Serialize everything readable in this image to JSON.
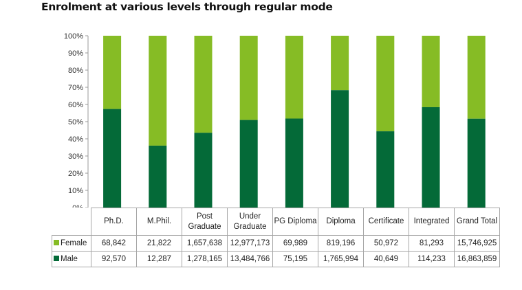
{
  "chart_data": {
    "type": "bar",
    "stacked": "percent",
    "title": "Enrolment at various levels through regular mode",
    "categories": [
      "Ph.D.",
      "M.Phil.",
      "Post Graduate",
      "Under Graduate",
      "PG Diploma",
      "Diploma",
      "Certificate",
      "Integrated",
      "Grand Total"
    ],
    "category_lines": [
      [
        "Ph.D."
      ],
      [
        "M.Phil."
      ],
      [
        "Post",
        "Graduate"
      ],
      [
        "Under",
        "Graduate"
      ],
      [
        "PG Diploma"
      ],
      [
        "Diploma"
      ],
      [
        "Certificate"
      ],
      [
        "Integrated"
      ],
      [
        "Grand Total"
      ]
    ],
    "series": [
      {
        "name": "Female",
        "color": "#86bc25",
        "values": [
          68842,
          21822,
          1657638,
          12977173,
          69989,
          819196,
          50972,
          81293,
          15746925
        ],
        "labels": [
          "68,842",
          "21,822",
          "1,657,638",
          "12,977,173",
          "69,989",
          "819,196",
          "50,972",
          "81,293",
          "15,746,925"
        ]
      },
      {
        "name": "Male",
        "color": "#046a38",
        "values": [
          92570,
          12287,
          1278165,
          13484766,
          75195,
          1765994,
          40649,
          114233,
          16863859
        ],
        "labels": [
          "92,570",
          "12,287",
          "1,278,165",
          "13,484,766",
          "75,195",
          "1,765,994",
          "40,649",
          "114,233",
          "16,863,859"
        ]
      }
    ],
    "yticks": [
      "0%",
      "10%",
      "20%",
      "30%",
      "40%",
      "50%",
      "60%",
      "70%",
      "80%",
      "90%",
      "100%"
    ],
    "ylim": [
      0,
      100
    ],
    "legend": "data-table"
  }
}
